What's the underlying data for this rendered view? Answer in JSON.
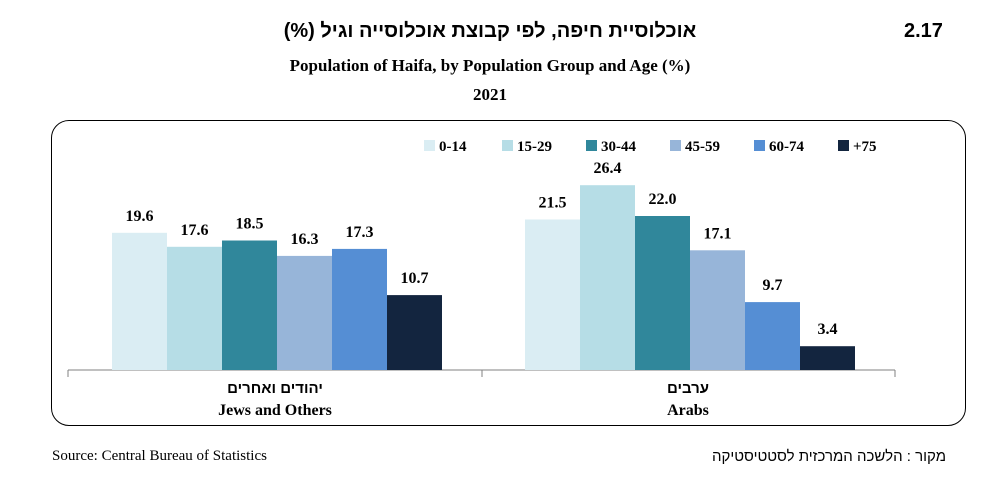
{
  "figure": {
    "number": "2.17",
    "title_he": "אוכלוסיית חיפה, לפי קבוצת אוכלוסייה וגיל (%)",
    "title_en": "Population of Haifa, by Population Group and Age (%)",
    "year": "2021"
  },
  "source": {
    "en": "Source: Central Bureau of Statistics",
    "he": "מקור : הלשכה המרכזית לסטטיסטיקה"
  },
  "chart_data": {
    "type": "bar",
    "categories": [
      {
        "he": "יהודים ואחרים",
        "en": "Jews and Others"
      },
      {
        "he": "ערבים",
        "en": "Arabs"
      }
    ],
    "series": [
      {
        "name": "0-14",
        "color": "#daedf3",
        "values": [
          19.6,
          21.5
        ]
      },
      {
        "name": "15-29",
        "color": "#b6dde6",
        "values": [
          17.6,
          26.4
        ]
      },
      {
        "name": "30-44",
        "color": "#30879b",
        "values": [
          18.5,
          22.0
        ]
      },
      {
        "name": "45-59",
        "color": "#97b5d9",
        "values": [
          16.3,
          17.1
        ]
      },
      {
        "name": "60-74",
        "color": "#558ed4",
        "values": [
          17.3,
          9.7
        ]
      },
      {
        "name": "+75",
        "color": "#13253f",
        "values": [
          10.7,
          3.4
        ]
      }
    ],
    "ylim": [
      0,
      30
    ],
    "legend": "top-right",
    "grid": false
  }
}
